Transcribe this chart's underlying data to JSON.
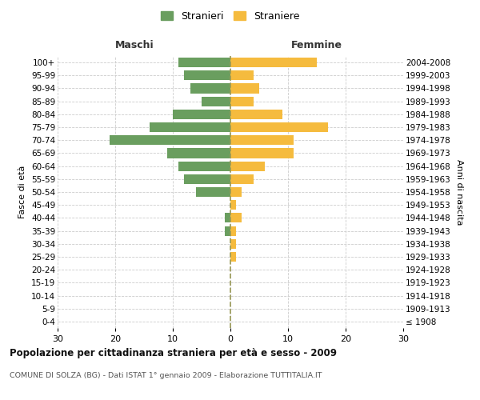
{
  "age_groups": [
    "0-4",
    "5-9",
    "10-14",
    "15-19",
    "20-24",
    "25-29",
    "30-34",
    "35-39",
    "40-44",
    "45-49",
    "50-54",
    "55-59",
    "60-64",
    "65-69",
    "70-74",
    "75-79",
    "80-84",
    "85-89",
    "90-94",
    "95-99",
    "100+"
  ],
  "birth_years": [
    "2004-2008",
    "1999-2003",
    "1994-1998",
    "1989-1993",
    "1984-1988",
    "1979-1983",
    "1974-1978",
    "1969-1973",
    "1964-1968",
    "1959-1963",
    "1954-1958",
    "1949-1953",
    "1944-1948",
    "1939-1943",
    "1934-1938",
    "1929-1933",
    "1924-1928",
    "1919-1923",
    "1914-1918",
    "1909-1913",
    "≤ 1908"
  ],
  "maschi": [
    9,
    8,
    7,
    5,
    10,
    14,
    21,
    11,
    9,
    8,
    6,
    0,
    1,
    1,
    0,
    0,
    0,
    0,
    0,
    0,
    0
  ],
  "femmine": [
    15,
    4,
    5,
    4,
    9,
    17,
    11,
    11,
    6,
    4,
    2,
    1,
    2,
    1,
    1,
    1,
    0,
    0,
    0,
    0,
    0
  ],
  "color_maschi": "#6a9e5f",
  "color_femmine": "#f5bb3e",
  "color_centerline": "#999955",
  "title": "Popolazione per cittadinanza straniera per età e sesso - 2009",
  "subtitle": "COMUNE DI SOLZA (BG) - Dati ISTAT 1° gennaio 2009 - Elaborazione TUTTITALIA.IT",
  "ylabel_left": "Fasce di età",
  "ylabel_right": "Anni di nascita",
  "xlabel_left": "Maschi",
  "xlabel_right": "Femmine",
  "legend_maschi": "Stranieri",
  "legend_femmine": "Straniere",
  "xlim": 30,
  "background_color": "#ffffff",
  "grid_color": "#cccccc"
}
